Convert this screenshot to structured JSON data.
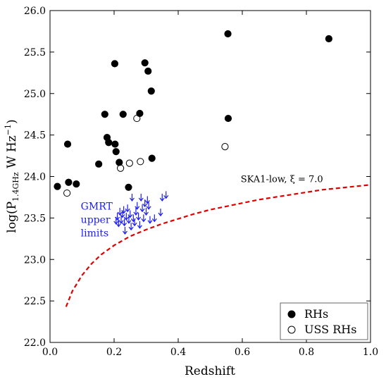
{
  "chart_data": {
    "type": "scatter",
    "xlabel": "Redshift",
    "ylabel": "log(P1.4GHz W Hz−1)",
    "xlim": [
      0.0,
      1.0
    ],
    "ylim": [
      22.0,
      26.0
    ],
    "x_ticks": [
      "0.0",
      "0.2",
      "0.4",
      "0.6",
      "0.8",
      "1.0"
    ],
    "y_ticks": [
      "22.0",
      "22.5",
      "23.0",
      "23.5",
      "24.0",
      "24.5",
      "25.0",
      "25.5",
      "26.0"
    ],
    "grid": false,
    "legend_position": "bottom-right",
    "series": [
      {
        "name": "RHs",
        "marker": "filled-circle",
        "color": "#000000",
        "points": [
          {
            "x": 0.023,
            "y": 23.88
          },
          {
            "x": 0.055,
            "y": 24.39
          },
          {
            "x": 0.058,
            "y": 23.93
          },
          {
            "x": 0.082,
            "y": 23.91
          },
          {
            "x": 0.152,
            "y": 24.15
          },
          {
            "x": 0.171,
            "y": 24.75
          },
          {
            "x": 0.178,
            "y": 24.47
          },
          {
            "x": 0.183,
            "y": 24.41
          },
          {
            "x": 0.202,
            "y": 25.36
          },
          {
            "x": 0.203,
            "y": 24.39
          },
          {
            "x": 0.206,
            "y": 24.3
          },
          {
            "x": 0.216,
            "y": 24.17
          },
          {
            "x": 0.228,
            "y": 24.75
          },
          {
            "x": 0.245,
            "y": 23.87
          },
          {
            "x": 0.28,
            "y": 24.76
          },
          {
            "x": 0.296,
            "y": 25.37
          },
          {
            "x": 0.306,
            "y": 25.27
          },
          {
            "x": 0.316,
            "y": 25.03
          },
          {
            "x": 0.318,
            "y": 24.22
          },
          {
            "x": 0.555,
            "y": 25.72
          },
          {
            "x": 0.556,
            "y": 24.7
          },
          {
            "x": 0.87,
            "y": 25.66
          }
        ]
      },
      {
        "name": "USS RHs",
        "marker": "open-circle",
        "color": "#000000",
        "points": [
          {
            "x": 0.053,
            "y": 23.8
          },
          {
            "x": 0.22,
            "y": 24.1
          },
          {
            "x": 0.248,
            "y": 24.16
          },
          {
            "x": 0.271,
            "y": 24.7
          },
          {
            "x": 0.282,
            "y": 24.18
          },
          {
            "x": 0.546,
            "y": 24.36
          }
        ]
      },
      {
        "marker": "down-arrow",
        "color": "#1a1aff",
        "points": [
          {
            "x": 0.206,
            "y": 23.47
          },
          {
            "x": 0.21,
            "y": 23.52
          },
          {
            "x": 0.214,
            "y": 23.44
          },
          {
            "x": 0.218,
            "y": 23.58
          },
          {
            "x": 0.222,
            "y": 23.48
          },
          {
            "x": 0.226,
            "y": 23.55
          },
          {
            "x": 0.23,
            "y": 23.6
          },
          {
            "x": 0.232,
            "y": 23.45
          },
          {
            "x": 0.234,
            "y": 23.35
          },
          {
            "x": 0.238,
            "y": 23.52
          },
          {
            "x": 0.242,
            "y": 23.62
          },
          {
            "x": 0.246,
            "y": 23.48
          },
          {
            "x": 0.25,
            "y": 23.55
          },
          {
            "x": 0.253,
            "y": 23.4
          },
          {
            "x": 0.256,
            "y": 23.75
          },
          {
            "x": 0.26,
            "y": 23.5
          },
          {
            "x": 0.264,
            "y": 23.45
          },
          {
            "x": 0.268,
            "y": 23.58
          },
          {
            "x": 0.272,
            "y": 23.65
          },
          {
            "x": 0.276,
            "y": 23.52
          },
          {
            "x": 0.28,
            "y": 23.42
          },
          {
            "x": 0.284,
            "y": 23.75
          },
          {
            "x": 0.288,
            "y": 23.62
          },
          {
            "x": 0.292,
            "y": 23.5
          },
          {
            "x": 0.296,
            "y": 23.68
          },
          {
            "x": 0.3,
            "y": 23.58
          },
          {
            "x": 0.304,
            "y": 23.72
          },
          {
            "x": 0.308,
            "y": 23.65
          },
          {
            "x": 0.312,
            "y": 23.48
          },
          {
            "x": 0.326,
            "y": 23.5
          },
          {
            "x": 0.345,
            "y": 23.57
          },
          {
            "x": 0.35,
            "y": 23.75
          },
          {
            "x": 0.362,
            "y": 23.78
          }
        ]
      },
      {
        "marker": "dashed-line",
        "color": "#e00000",
        "points": [
          {
            "x": 0.05,
            "y": 22.43
          },
          {
            "x": 0.07,
            "y": 22.62
          },
          {
            "x": 0.1,
            "y": 22.81
          },
          {
            "x": 0.13,
            "y": 22.95
          },
          {
            "x": 0.16,
            "y": 23.06
          },
          {
            "x": 0.2,
            "y": 23.17
          },
          {
            "x": 0.25,
            "y": 23.28
          },
          {
            "x": 0.3,
            "y": 23.36
          },
          {
            "x": 0.35,
            "y": 23.43
          },
          {
            "x": 0.4,
            "y": 23.49
          },
          {
            "x": 0.45,
            "y": 23.55
          },
          {
            "x": 0.5,
            "y": 23.6
          },
          {
            "x": 0.55,
            "y": 23.64
          },
          {
            "x": 0.6,
            "y": 23.68
          },
          {
            "x": 0.65,
            "y": 23.72
          },
          {
            "x": 0.7,
            "y": 23.75
          },
          {
            "x": 0.75,
            "y": 23.78
          },
          {
            "x": 0.8,
            "y": 23.81
          },
          {
            "x": 0.85,
            "y": 23.84
          },
          {
            "x": 0.9,
            "y": 23.86
          },
          {
            "x": 0.95,
            "y": 23.88
          },
          {
            "x": 1.0,
            "y": 23.9
          }
        ]
      }
    ],
    "annotations": [
      {
        "text_lines": [
          "GMRT",
          "upper",
          "limits"
        ],
        "x": 0.096,
        "y": 23.6,
        "color": "#1a1aff"
      },
      {
        "text": "SKA1-low, ξ = 7.0",
        "x": 0.595,
        "y": 23.93,
        "color": "#000000"
      }
    ],
    "legend": [
      {
        "label": "RHs",
        "marker": "filled-circle"
      },
      {
        "label": "USS RHs",
        "marker": "open-circle"
      }
    ]
  }
}
